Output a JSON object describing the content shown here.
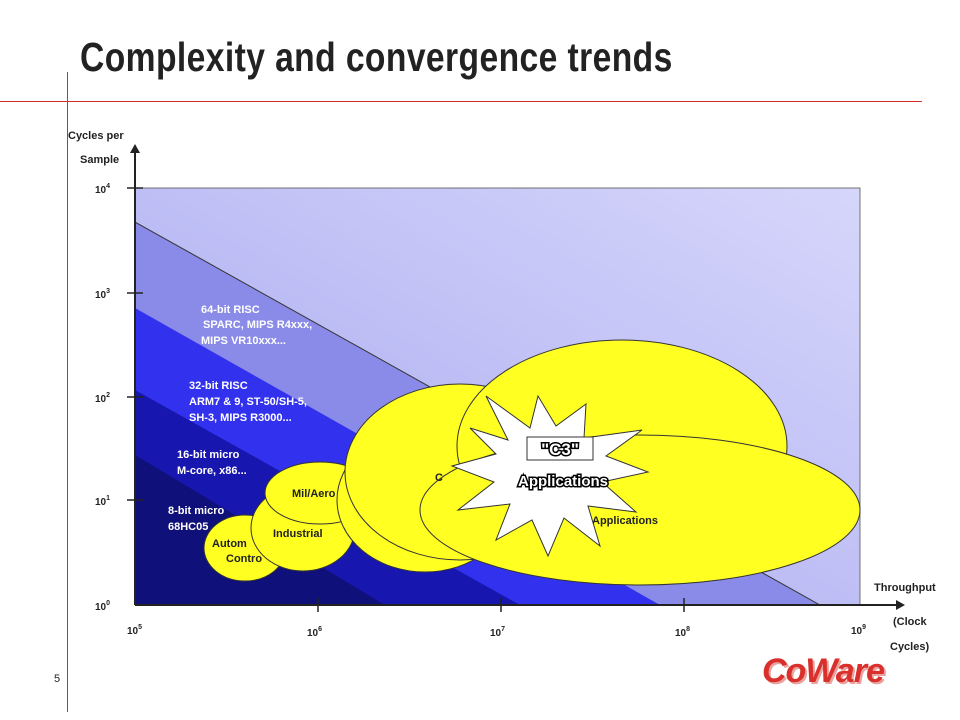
{
  "slide": {
    "title": "Complexity and convergence trends",
    "page_number": "5",
    "logo_text": "CoWare"
  },
  "axes": {
    "y_label_line1": "Cycles per",
    "y_label_line2": "Sample",
    "x_label_line1": "Throughput",
    "x_label_line2": "(Clock",
    "x_label_line3": "Cycles)",
    "y_ticks": [
      "10",
      "10",
      "10",
      "10",
      "10"
    ],
    "y_exps": [
      "4",
      "3",
      "2",
      "1",
      "0"
    ],
    "x_ticks": [
      "10",
      "10",
      "10",
      "10",
      "10"
    ],
    "x_exps": [
      "5",
      "6",
      "7",
      "8",
      "9"
    ]
  },
  "bands": [
    {
      "line1": "64-bit RISC",
      "line2": "SPARC, MIPS R4xxx,",
      "line3": "MIPS VR10xxx..."
    },
    {
      "line1": "32-bit RISC",
      "line2": "ARM7 & 9, ST-50/SH-5,",
      "line3": "SH-3, MIPS R3000..."
    },
    {
      "line1": "16-bit micro",
      "line2": "M-core, x86..."
    },
    {
      "line1": "8-bit micro",
      "line2": "68HC05"
    }
  ],
  "ellipses": {
    "automotive_line1": "Autom",
    "automotive_line2": "Contro",
    "industrial": "Industrial",
    "mil_aero": "Mil/Aero",
    "hidden_c": "C",
    "applications_partial": "Applications"
  },
  "starburst": {
    "line1": "\"C3\"",
    "line2": "Applications"
  },
  "colors": {
    "accent_red": "#d32a2a",
    "ellipse_yellow": "#ffff22",
    "band_darkest": "#10107a",
    "band_dark": "#1414b8",
    "band_mid": "#3232ee",
    "band_light": "#8a8ae8",
    "background_band": "#c8c8f6"
  }
}
